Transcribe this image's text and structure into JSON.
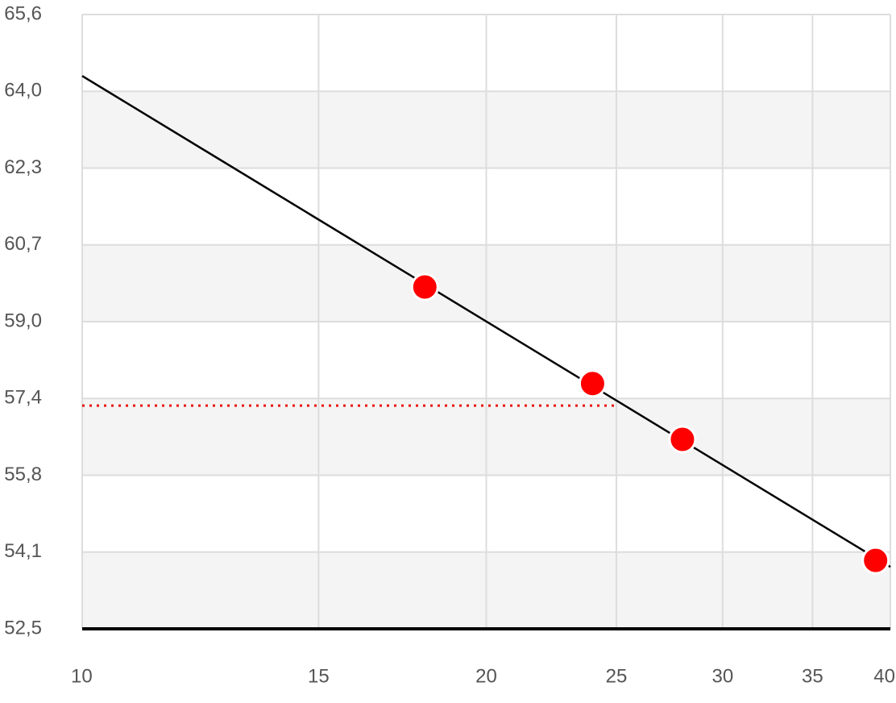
{
  "chart_data": {
    "type": "scatter",
    "xscale": "log",
    "grid": true,
    "bands": true,
    "xlim": [
      10,
      40
    ],
    "xticks": [
      10,
      15,
      20,
      25,
      30,
      35,
      40
    ],
    "ylim": [
      52.5,
      65.6
    ],
    "yticks": [
      {
        "value": 52.5,
        "label": "52,5"
      },
      {
        "value": 54.1375,
        "label": "54,1"
      },
      {
        "value": 55.775,
        "label": "55,8"
      },
      {
        "value": 57.4125,
        "label": "57,4"
      },
      {
        "value": 59.05,
        "label": "59,0"
      },
      {
        "value": 60.6875,
        "label": "60,7"
      },
      {
        "value": 62.325,
        "label": "62,3"
      },
      {
        "value": 63.9625,
        "label": "64,0"
      },
      {
        "value": 65.6,
        "label": "65,6"
      }
    ],
    "series": [
      {
        "kind": "points",
        "color": "#ff0000",
        "x": [
          18,
          24,
          28,
          39
        ],
        "values": [
          59.79,
          57.73,
          56.54,
          53.96
        ]
      },
      {
        "kind": "line",
        "color": "#000000",
        "x": [
          10,
          40
        ],
        "values": [
          64.29,
          53.82
        ]
      },
      {
        "kind": "dotted",
        "color": "#e8150f",
        "x": [
          10,
          25
        ],
        "values": [
          57.26,
          57.26
        ]
      }
    ]
  }
}
